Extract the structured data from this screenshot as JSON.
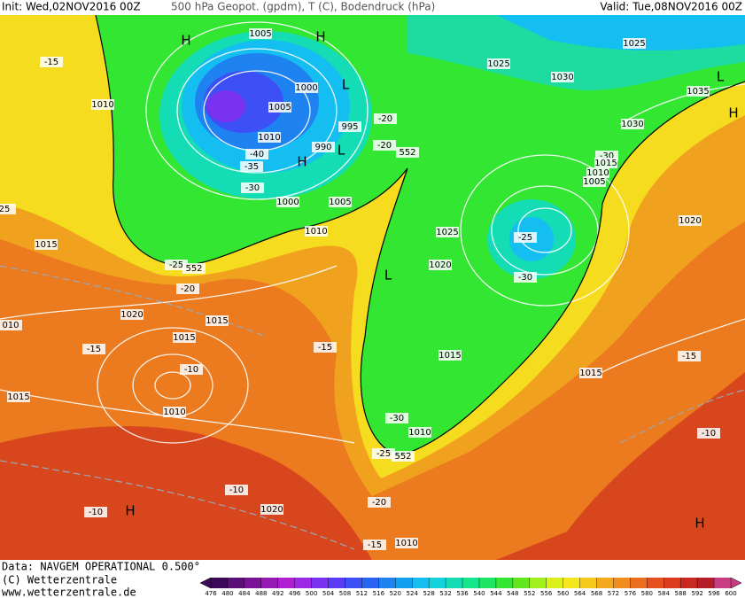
{
  "header": {
    "init": "Init: Wed,02NOV2016 00Z",
    "fields": "500 hPa Geopot. (gpdm), T (C), Bodendruck (hPa)",
    "valid": "Valid: Tue,08NOV2016 00Z"
  },
  "footer": {
    "data": "Data: NAVGEM OPERATIONAL 0.500°",
    "copyright": "(C) Wetterzentrale",
    "url": "www.wetterzentrale.de"
  },
  "colorbar": {
    "ticks": [
      476,
      480,
      484,
      488,
      492,
      496,
      500,
      504,
      508,
      512,
      516,
      520,
      524,
      528,
      532,
      536,
      540,
      544,
      548,
      552,
      556,
      560,
      564,
      568,
      572,
      576,
      580,
      584,
      588,
      592,
      596,
      600
    ],
    "colors": [
      "#3d0a5a",
      "#5a0f78",
      "#7a1496",
      "#9619b4",
      "#b01ed2",
      "#9c28e6",
      "#7832f0",
      "#5a3cf5",
      "#3c50f5",
      "#2864f0",
      "#1e82f0",
      "#14a0f0",
      "#14bef0",
      "#14d2dc",
      "#14dcb4",
      "#14e68c",
      "#1ee664",
      "#32e632",
      "#64e61e",
      "#a0f01e",
      "#dcf01e",
      "#f5e61e",
      "#f5c81e",
      "#f5aa1e",
      "#f08c1e",
      "#eb6e1e",
      "#e6501e",
      "#dc3c1e",
      "#c8281e",
      "#b41e28",
      "#c83c82"
    ]
  },
  "map": {
    "labels": [
      "1005",
      "H",
      "H",
      "1025",
      "1025",
      "1030",
      "1035",
      "L",
      "H",
      "-15",
      "1010",
      "1000",
      "L",
      "1005",
      "-20",
      "995",
      "1010",
      "-20",
      "552",
      "990",
      "L",
      "H",
      "-40",
      "-35",
      "-30",
      "1000",
      "1005",
      "1030",
      "-30",
      "1015",
      "1010",
      "1005",
      "1020",
      "1010",
      "1025",
      "-25",
      "1015",
      "-25",
      "552",
      "1020",
      "-20",
      "-30",
      "L",
      "010",
      "1020",
      "1015",
      "1015",
      "-15",
      "-15",
      "1015",
      "-15",
      "-10",
      "1015",
      "1015",
      "1010",
      "-30",
      "1010",
      "-10",
      "-25",
      "552",
      "-10",
      "1020",
      "-10",
      "H",
      "-20",
      "H",
      "-15",
      "1010",
      "25"
    ]
  }
}
